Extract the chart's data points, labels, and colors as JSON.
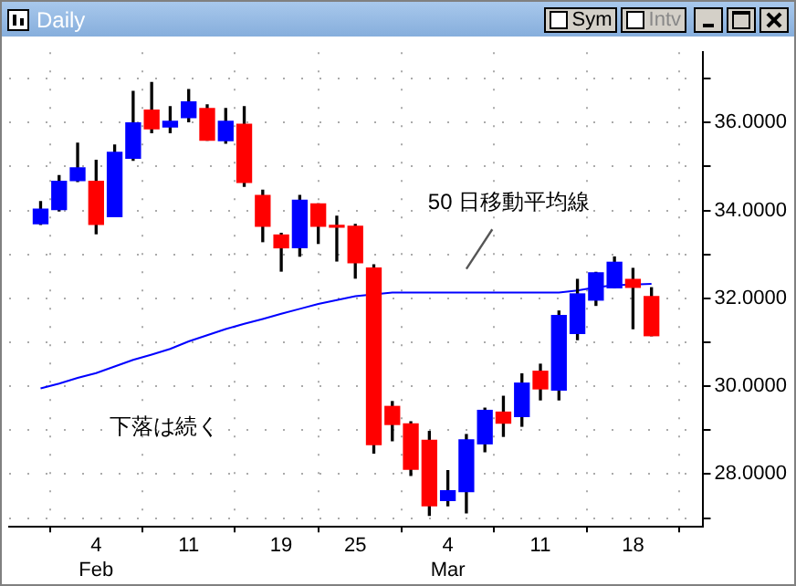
{
  "chart_data": {
    "type": "candlestick",
    "title": "Daily",
    "categories": [
      null,
      null,
      null,
      "4\nFeb",
      null,
      null,
      null,
      null,
      "11",
      null,
      null,
      null,
      null,
      "19",
      null,
      null,
      null,
      "25",
      null,
      null,
      null,
      null,
      "4\nMar",
      null,
      null,
      null,
      null,
      "11",
      null,
      null,
      null,
      null,
      "18",
      null
    ],
    "ohlc": [
      [
        33.7,
        34.2,
        33.68,
        34.03
      ],
      [
        34.02,
        34.79,
        33.99,
        34.66
      ],
      [
        34.68,
        35.53,
        34.66,
        34.97
      ],
      [
        34.66,
        35.14,
        33.47,
        33.68
      ],
      [
        33.86,
        35.49,
        33.86,
        35.32
      ],
      [
        35.19,
        36.71,
        35.14,
        35.99
      ],
      [
        36.28,
        36.91,
        35.77,
        35.86
      ],
      [
        35.9,
        36.36,
        35.77,
        36.03
      ],
      [
        36.11,
        36.75,
        36.02,
        36.47
      ],
      [
        36.32,
        36.4,
        35.6,
        35.6
      ],
      [
        35.59,
        36.32,
        35.53,
        36.03
      ],
      [
        35.96,
        36.36,
        34.55,
        34.64
      ],
      [
        34.34,
        34.46,
        33.29,
        33.64
      ],
      [
        33.44,
        33.48,
        32.62,
        33.15
      ],
      [
        33.15,
        34.34,
        32.96,
        34.23
      ],
      [
        34.15,
        34.15,
        33.25,
        33.64
      ],
      [
        33.63,
        33.87,
        32.85,
        33.62
      ],
      [
        33.64,
        33.68,
        32.46,
        32.81
      ],
      [
        32.69,
        32.76,
        28.48,
        28.67
      ],
      [
        29.54,
        29.65,
        28.76,
        29.13
      ],
      [
        29.14,
        29.19,
        27.97,
        28.11
      ],
      [
        28.77,
        28.97,
        27.06,
        27.28
      ],
      [
        27.4,
        28.08,
        27.28,
        27.62
      ],
      [
        27.6,
        28.9,
        27.12,
        28.78
      ],
      [
        28.69,
        29.5,
        28.51,
        29.45
      ],
      [
        29.41,
        29.77,
        28.86,
        29.16
      ],
      [
        29.31,
        30.28,
        29.09,
        30.07
      ],
      [
        30.34,
        30.5,
        29.69,
        29.94
      ],
      [
        29.91,
        31.71,
        29.69,
        31.61
      ],
      [
        31.2,
        32.43,
        31.06,
        32.1
      ],
      [
        31.96,
        32.59,
        31.84,
        32.58
      ],
      [
        32.24,
        32.94,
        32.24,
        32.82
      ],
      [
        32.43,
        32.68,
        31.31,
        32.25
      ],
      [
        32.04,
        32.24,
        31.15,
        31.15
      ]
    ],
    "colors": [
      "#0000ff",
      "#0000ff",
      "#0000ff",
      "#ff0000",
      "#0000ff",
      "#0000ff",
      "#ff0000",
      "#0000ff",
      "#0000ff",
      "#ff0000",
      "#0000ff",
      "#ff0000",
      "#ff0000",
      "#ff0000",
      "#0000ff",
      "#ff0000",
      "#ff0000",
      "#ff0000",
      "#ff0000",
      "#ff0000",
      "#ff0000",
      "#ff0000",
      "#0000ff",
      "#0000ff",
      "#0000ff",
      "#ff0000",
      "#0000ff",
      "#ff0000",
      "#0000ff",
      "#0000ff",
      "#0000ff",
      "#0000ff",
      "#ff0000",
      "#ff0000"
    ],
    "series": [
      {
        "type": "line",
        "color": "#0000ff",
        "values": [
          29.95,
          30.06,
          30.19,
          30.3,
          30.45,
          30.6,
          30.72,
          30.85,
          31.02,
          31.16,
          31.3,
          31.42,
          31.53,
          31.65,
          31.76,
          31.87,
          31.96,
          32.05,
          null,
          32.13,
          32.13,
          32.13,
          32.13,
          32.13,
          32.13,
          32.13,
          32.13,
          32.13,
          32.13,
          32.18,
          32.25,
          32.3,
          null,
          32.33
        ]
      }
    ],
    "ylim": [
      26.8,
      37.6
    ],
    "yticks": [
      {
        "value": 27,
        "label": null
      },
      {
        "value": 28,
        "label": "28.0000"
      },
      {
        "value": 29,
        "label": null
      },
      {
        "value": 30,
        "label": "30.0000"
      },
      {
        "value": 31,
        "label": null
      },
      {
        "value": 32,
        "label": "32.0000"
      },
      {
        "value": 33,
        "label": null
      },
      {
        "value": 34,
        "label": "34.0000"
      },
      {
        "value": 35,
        "label": null
      },
      {
        "value": 36,
        "label": "36.0000"
      },
      {
        "value": 37,
        "label": null
      }
    ],
    "grid": true,
    "legend": false,
    "annotations": [
      "50 日移動平均線",
      "下落は続く",
      "Sym",
      "Intv"
    ]
  }
}
